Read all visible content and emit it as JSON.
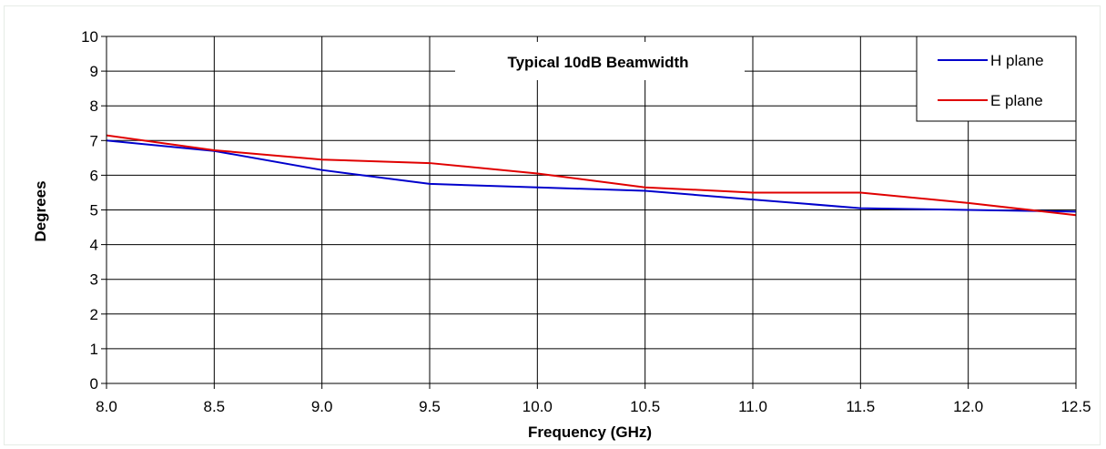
{
  "chart_data": {
    "type": "line",
    "title": "Typical 10dB Beamwidth",
    "xlabel": "Frequency  (GHz)",
    "ylabel": "Degrees",
    "xlim": [
      8.0,
      12.5
    ],
    "ylim": [
      0,
      10
    ],
    "x_ticks": [
      "8.0",
      "8.5",
      "9.0",
      "9.5",
      "10.0",
      "10.5",
      "11.0",
      "11.5",
      "12.0",
      "12.5"
    ],
    "y_ticks": [
      "0",
      "1",
      "2",
      "3",
      "4",
      "5",
      "6",
      "7",
      "8",
      "9",
      "10"
    ],
    "grid": true,
    "legend_position": "top-right",
    "x": [
      8.0,
      8.5,
      9.0,
      9.5,
      10.0,
      10.5,
      11.0,
      11.5,
      12.0,
      12.5
    ],
    "series": [
      {
        "name": "H plane",
        "color": "#0000cc",
        "values": [
          7.0,
          6.7,
          6.15,
          5.75,
          5.65,
          5.55,
          5.3,
          5.05,
          5.0,
          4.95
        ]
      },
      {
        "name": "E plane",
        "color": "#e00000",
        "values": [
          7.15,
          6.72,
          6.45,
          6.35,
          6.05,
          5.65,
          5.5,
          5.5,
          5.2,
          4.85
        ]
      }
    ]
  }
}
